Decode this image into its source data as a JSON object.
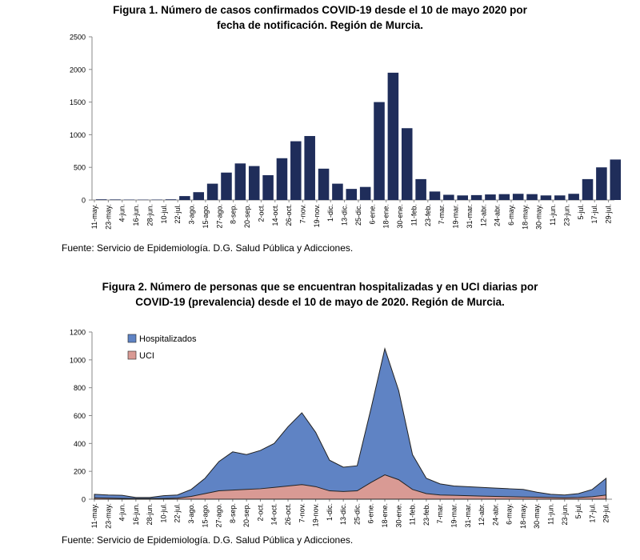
{
  "figures": [
    {
      "title_line1": "Figura 1. Número de casos confirmados COVID-19 desde el 10 de mayo 2020 por",
      "title_line2": "fecha de notificación. Región de Murcia.",
      "source": "Fuente: Servicio de Epidemiología. D.G. Salud Pública y Adicciones."
    },
    {
      "title_line1": "Figura 2. Número de personas que se encuentran hospitalizadas  y en UCI diarias por",
      "title_line2": "COVID-19 (prevalencia)  desde el 10 de mayo de 2020. Región de Murcia.",
      "source": "Fuente: Servicio de Epidemiología. D.G. Salud Pública y Adicciones."
    }
  ],
  "chart_data": [
    {
      "type": "bar",
      "title": "Figura 1. Número de casos confirmados COVID-19 desde el 10 de mayo 2020 por fecha de notificación. Región de Murcia.",
      "ylim": [
        0,
        2500
      ],
      "yticks": [
        0,
        500,
        1000,
        1500,
        2000,
        2500
      ],
      "xticks": [
        "11-may.",
        "23-may.",
        "4-jun.",
        "16-jun.",
        "28-jun.",
        "10-jul.",
        "22-jul.",
        "3-ago.",
        "15-ago.",
        "27-ago.",
        "8-sep.",
        "20-sep.",
        "2-oct.",
        "14-oct.",
        "26-oct.",
        "7-nov.",
        "19-nov.",
        "1-dic.",
        "13-dic.",
        "25-dic.",
        "6-ene.",
        "18-ene.",
        "30-ene.",
        "11-feb.",
        "23-feb.",
        "7-mar.",
        "19-mar.",
        "31-mar.",
        "12-abr.",
        "24-abr.",
        "6-may.",
        "18-may.",
        "30-may.",
        "11-jun.",
        "23-jun.",
        "5-jul.",
        "17-jul.",
        "29-jul."
      ],
      "series": [
        {
          "color": "#1f2d5a",
          "x": [
            "11-may.",
            "23-may.",
            "4-jun.",
            "16-jun.",
            "28-jun.",
            "10-jul.",
            "22-jul.",
            "3-ago.",
            "15-ago.",
            "27-ago.",
            "8-sep.",
            "20-sep.",
            "2-oct.",
            "14-oct.",
            "26-oct.",
            "7-nov.",
            "19-nov.",
            "1-dic.",
            "13-dic.",
            "25-dic.",
            "6-ene.",
            "18-ene.",
            "30-ene.",
            "11-feb.",
            "23-feb.",
            "7-mar.",
            "19-mar.",
            "31-mar.",
            "12-abr.",
            "24-abr.",
            "6-may.",
            "18-may.",
            "30-may.",
            "11-jun.",
            "23-jun.",
            "5-jul.",
            "17-jul.",
            "29-jul."
          ],
          "values": [
            10,
            8,
            6,
            5,
            6,
            10,
            60,
            120,
            250,
            420,
            560,
            520,
            380,
            640,
            900,
            980,
            480,
            250,
            170,
            200,
            1500,
            1950,
            1100,
            320,
            130,
            80,
            70,
            75,
            85,
            90,
            95,
            90,
            70,
            70,
            95,
            320,
            500,
            620
          ]
        }
      ]
    },
    {
      "type": "area",
      "title": "Figura 2. Número de personas que se encuentran hospitalizadas y en UCI diarias por COVID-19 (prevalencia) desde el 10 de mayo de 2020. Región de Murcia.",
      "ylim": [
        0,
        1200
      ],
      "yticks": [
        0,
        200,
        400,
        600,
        800,
        1000,
        1200
      ],
      "legend_position": "top-left",
      "xticks": [
        "11-may.",
        "23-may.",
        "4-jun.",
        "16-jun.",
        "28-jun.",
        "10-jul.",
        "22-jul.",
        "3-ago.",
        "15-ago.",
        "27-ago.",
        "8-sep.",
        "20-sep.",
        "2-oct.",
        "14-oct.",
        "26-oct.",
        "7-nov.",
        "19-nov.",
        "1-dic.",
        "13-dic.",
        "25-dic.",
        "6-ene.",
        "18-ene.",
        "30-ene.",
        "11-feb.",
        "23-feb.",
        "7-mar.",
        "19-mar.",
        "31-mar.",
        "12-abr.",
        "24-abr.",
        "6-may.",
        "18-may.",
        "30-may.",
        "11-jun.",
        "23-jun.",
        "5-jul.",
        "17-jul.",
        "29-jul."
      ],
      "series": [
        {
          "name": "Hospitalizados",
          "color": "#5f83c4",
          "x": [
            "11-may.",
            "23-may.",
            "4-jun.",
            "16-jun.",
            "28-jun.",
            "10-jul.",
            "22-jul.",
            "3-ago.",
            "15-ago.",
            "27-ago.",
            "8-sep.",
            "20-sep.",
            "2-oct.",
            "14-oct.",
            "26-oct.",
            "7-nov.",
            "19-nov.",
            "1-dic.",
            "13-dic.",
            "25-dic.",
            "6-ene.",
            "18-ene.",
            "30-ene.",
            "11-feb.",
            "23-feb.",
            "7-mar.",
            "19-mar.",
            "31-mar.",
            "12-abr.",
            "24-abr.",
            "6-may.",
            "18-may.",
            "30-may.",
            "11-jun.",
            "23-jun.",
            "5-jul.",
            "17-jul.",
            "29-jul."
          ],
          "values": [
            35,
            30,
            28,
            12,
            12,
            25,
            30,
            70,
            150,
            270,
            340,
            320,
            350,
            400,
            520,
            620,
            480,
            280,
            230,
            240,
            650,
            1080,
            780,
            320,
            150,
            110,
            95,
            90,
            85,
            80,
            75,
            70,
            50,
            35,
            30,
            40,
            70,
            150
          ]
        },
        {
          "name": "UCI",
          "color": "#d99a94",
          "x": [
            "11-may.",
            "23-may.",
            "4-jun.",
            "16-jun.",
            "28-jun.",
            "10-jul.",
            "22-jul.",
            "3-ago.",
            "15-ago.",
            "27-ago.",
            "8-sep.",
            "20-sep.",
            "2-oct.",
            "14-oct.",
            "26-oct.",
            "7-nov.",
            "19-nov.",
            "1-dic.",
            "13-dic.",
            "25-dic.",
            "6-ene.",
            "18-ene.",
            "30-ene.",
            "11-feb.",
            "23-feb.",
            "7-mar.",
            "19-mar.",
            "31-mar.",
            "12-abr.",
            "24-abr.",
            "6-may.",
            "18-may.",
            "30-may.",
            "11-jun.",
            "23-jun.",
            "5-jul.",
            "17-jul.",
            "29-jul."
          ],
          "values": [
            10,
            8,
            6,
            4,
            4,
            5,
            8,
            20,
            40,
            60,
            65,
            70,
            75,
            85,
            95,
            105,
            90,
            60,
            55,
            60,
            120,
            175,
            140,
            70,
            40,
            30,
            28,
            25,
            22,
            20,
            18,
            16,
            14,
            12,
            10,
            12,
            18,
            30
          ]
        }
      ]
    }
  ]
}
